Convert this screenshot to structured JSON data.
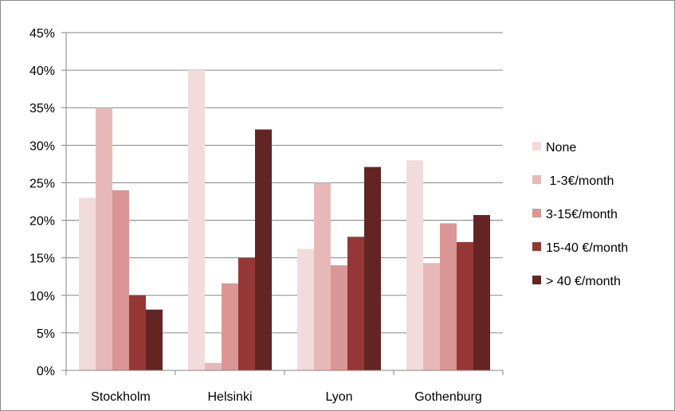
{
  "chart_data": {
    "type": "bar",
    "title": "",
    "xlabel": "",
    "ylabel": "",
    "categories": [
      "Stockholm",
      "Helsinki",
      "Lyon",
      "Gothenburg"
    ],
    "ylim": [
      0,
      45
    ],
    "yticks": [
      0,
      5,
      10,
      15,
      20,
      25,
      30,
      35,
      40,
      45
    ],
    "ytick_labels": [
      "0%",
      "5%",
      "10%",
      "15%",
      "20%",
      "25%",
      "30%",
      "35%",
      "40%",
      "45%"
    ],
    "grid": true,
    "legend_position": "right",
    "series": [
      {
        "name": "None",
        "color": "#f2dcdb",
        "values": [
          23,
          40,
          16.2,
          28
        ]
      },
      {
        "name": " 1-3€/month",
        "color": "#e6b9b8",
        "values": [
          35,
          1,
          25,
          14.3
        ]
      },
      {
        "name": "3-15€/month",
        "color": "#d99694",
        "values": [
          24,
          11.6,
          14,
          19.6
        ]
      },
      {
        "name": "15-40 €/month",
        "color": "#953735",
        "values": [
          10,
          15,
          17.8,
          17.1
        ]
      },
      {
        "name": "> 40 €/month",
        "color": "#632523",
        "values": [
          8.1,
          32.1,
          27.1,
          20.7
        ]
      }
    ]
  }
}
